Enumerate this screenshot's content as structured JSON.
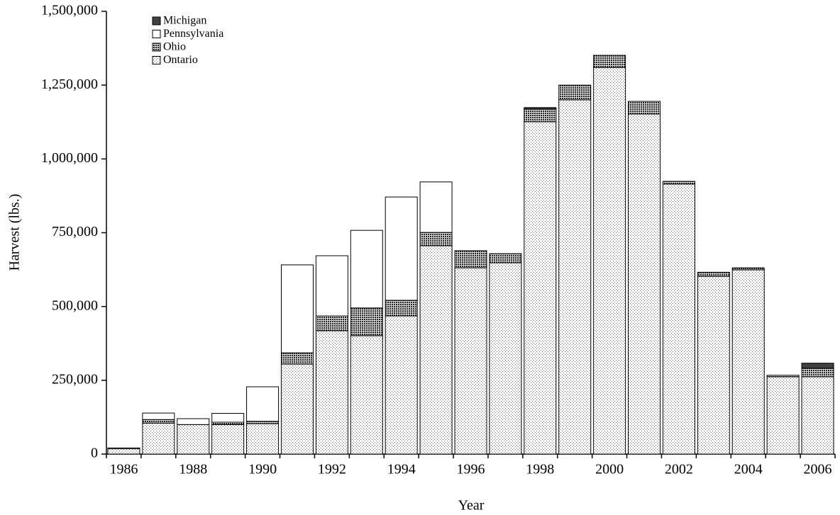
{
  "chart_data": {
    "type": "stacked_bar",
    "x_label": "Year",
    "y_label": "Harvest (lbs.)",
    "categories": [
      "1986",
      null,
      "1988",
      null,
      "1990",
      null,
      "1992",
      null,
      "1994",
      null,
      "1996",
      null,
      "1998",
      null,
      "2000",
      null,
      "2002",
      null,
      "2004",
      null,
      "2006"
    ],
    "series": [
      {
        "name": "Michigan",
        "color": "#404040",
        "fill_style": "solid",
        "values": [
          0,
          0,
          0,
          0,
          0,
          0,
          0,
          0,
          0,
          0,
          0,
          0,
          5000,
          0,
          0,
          0,
          0,
          0,
          0,
          0,
          17000
        ]
      },
      {
        "name": "Pennsylvania",
        "color": "#ffffff",
        "fill_style": "solid",
        "values": [
          0,
          22000,
          20000,
          30000,
          117000,
          298000,
          204000,
          263000,
          350000,
          171000,
          0,
          0,
          0,
          0,
          0,
          0,
          0,
          0,
          0,
          0,
          0
        ]
      },
      {
        "name": "Ohio",
        "color": "#222222",
        "fill_style": "dense-dots",
        "values": [
          3000,
          12000,
          0,
          8000,
          8000,
          38000,
          50000,
          94000,
          53000,
          45000,
          58000,
          31000,
          43000,
          50000,
          41000,
          43000,
          9000,
          14000,
          7000,
          5000,
          29000
        ]
      },
      {
        "name": "Ontario",
        "color": "#666666",
        "fill_style": "dots",
        "values": [
          18000,
          105000,
          100000,
          100000,
          103000,
          305000,
          418000,
          401000,
          468000,
          706000,
          631000,
          648000,
          1126000,
          1200000,
          1310000,
          1152000,
          915000,
          602000,
          624000,
          262000,
          262000
        ]
      }
    ],
    "ylim": [
      0,
      1500000
    ],
    "yticks": [
      0,
      {
        "value": 250000,
        "label": "250,000"
      },
      {
        "value": 500000,
        "label": "500,000"
      },
      {
        "value": 750000,
        "label": "750,000"
      },
      {
        "value": 1000000,
        "label": "1,000,000"
      },
      {
        "value": 1250000,
        "label": "1,250,000"
      },
      {
        "value": 1500000,
        "label": "1,500,000"
      }
    ],
    "legend": "top-left",
    "grid": false
  }
}
